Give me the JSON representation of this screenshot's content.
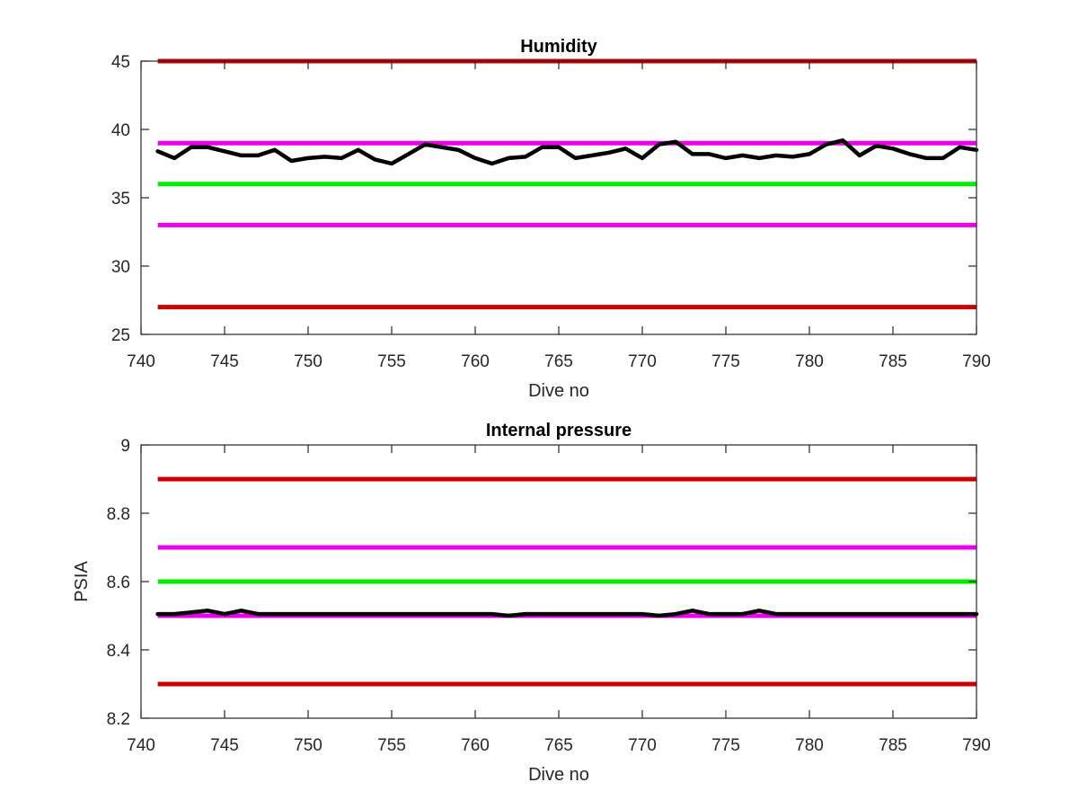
{
  "chart_data": [
    {
      "type": "line",
      "title": "Humidity",
      "xlabel": "Dive no",
      "ylabel": "",
      "xlim": [
        740,
        790
      ],
      "ylim": [
        25,
        45
      ],
      "xticks": [
        "740",
        "745",
        "750",
        "755",
        "760",
        "765",
        "770",
        "775",
        "780",
        "785",
        "790"
      ],
      "yticks": [
        "25",
        "30",
        "35",
        "40",
        "45"
      ],
      "grid": false,
      "legend": "none",
      "threshold_lines": [
        {
          "value": 45,
          "color": "#cc0000"
        },
        {
          "value": 39,
          "color": "#ee00ee"
        },
        {
          "value": 36,
          "color": "#00ee00"
        },
        {
          "value": 33,
          "color": "#ee00ee"
        },
        {
          "value": 27,
          "color": "#cc0000"
        }
      ],
      "series": [
        {
          "color": "#000000",
          "x": [
            741,
            742,
            743,
            744,
            745,
            746,
            747,
            748,
            749,
            750,
            751,
            752,
            753,
            754,
            755,
            756,
            757,
            758,
            759,
            760,
            761,
            762,
            763,
            764,
            765,
            766,
            767,
            768,
            769,
            770,
            771,
            772,
            773,
            774,
            775,
            776,
            777,
            778,
            779,
            780,
            781,
            782,
            783,
            784,
            785,
            786,
            787,
            788,
            789,
            790
          ],
          "values": [
            38.4,
            37.9,
            38.7,
            38.7,
            38.4,
            38.1,
            38.1,
            38.5,
            37.7,
            37.9,
            38.0,
            37.9,
            38.5,
            37.8,
            37.5,
            38.2,
            38.9,
            38.7,
            38.5,
            37.9,
            37.5,
            37.9,
            38.0,
            38.7,
            38.7,
            37.9,
            38.1,
            38.3,
            38.6,
            37.9,
            38.9,
            39.1,
            38.2,
            38.2,
            37.9,
            38.1,
            37.9,
            38.1,
            38.0,
            38.2,
            38.9,
            39.2,
            38.1,
            38.8,
            38.6,
            38.2,
            37.9,
            37.9,
            38.7,
            38.5
          ]
        }
      ]
    },
    {
      "type": "line",
      "title": "Internal pressure",
      "xlabel": "Dive no",
      "ylabel": "PSIA",
      "xlim": [
        740,
        790
      ],
      "ylim": [
        8.2,
        9
      ],
      "xticks": [
        "740",
        "745",
        "750",
        "755",
        "760",
        "765",
        "770",
        "775",
        "780",
        "785",
        "790"
      ],
      "yticks": [
        "8.2",
        "8.4",
        "8.6",
        "8.8",
        "9"
      ],
      "grid": false,
      "legend": "none",
      "threshold_lines": [
        {
          "value": 8.9,
          "color": "#cc0000"
        },
        {
          "value": 8.7,
          "color": "#ee00ee"
        },
        {
          "value": 8.6,
          "color": "#00ee00"
        },
        {
          "value": 8.5,
          "color": "#ee00ee"
        },
        {
          "value": 8.3,
          "color": "#cc0000"
        }
      ],
      "series": [
        {
          "color": "#000000",
          "x": [
            741,
            742,
            743,
            744,
            745,
            746,
            747,
            748,
            749,
            750,
            751,
            752,
            753,
            754,
            755,
            756,
            757,
            758,
            759,
            760,
            761,
            762,
            763,
            764,
            765,
            766,
            767,
            768,
            769,
            770,
            771,
            772,
            773,
            774,
            775,
            776,
            777,
            778,
            779,
            780,
            781,
            782,
            783,
            784,
            785,
            786,
            787,
            788,
            789,
            790
          ],
          "values": [
            8.505,
            8.505,
            8.51,
            8.515,
            8.505,
            8.515,
            8.505,
            8.505,
            8.505,
            8.505,
            8.505,
            8.505,
            8.505,
            8.505,
            8.505,
            8.505,
            8.505,
            8.505,
            8.505,
            8.505,
            8.505,
            8.5,
            8.505,
            8.505,
            8.505,
            8.505,
            8.505,
            8.505,
            8.505,
            8.505,
            8.5,
            8.505,
            8.515,
            8.505,
            8.505,
            8.505,
            8.515,
            8.505,
            8.505,
            8.505,
            8.505,
            8.505,
            8.505,
            8.505,
            8.505,
            8.505,
            8.505,
            8.505,
            8.505,
            8.505
          ]
        }
      ]
    }
  ]
}
